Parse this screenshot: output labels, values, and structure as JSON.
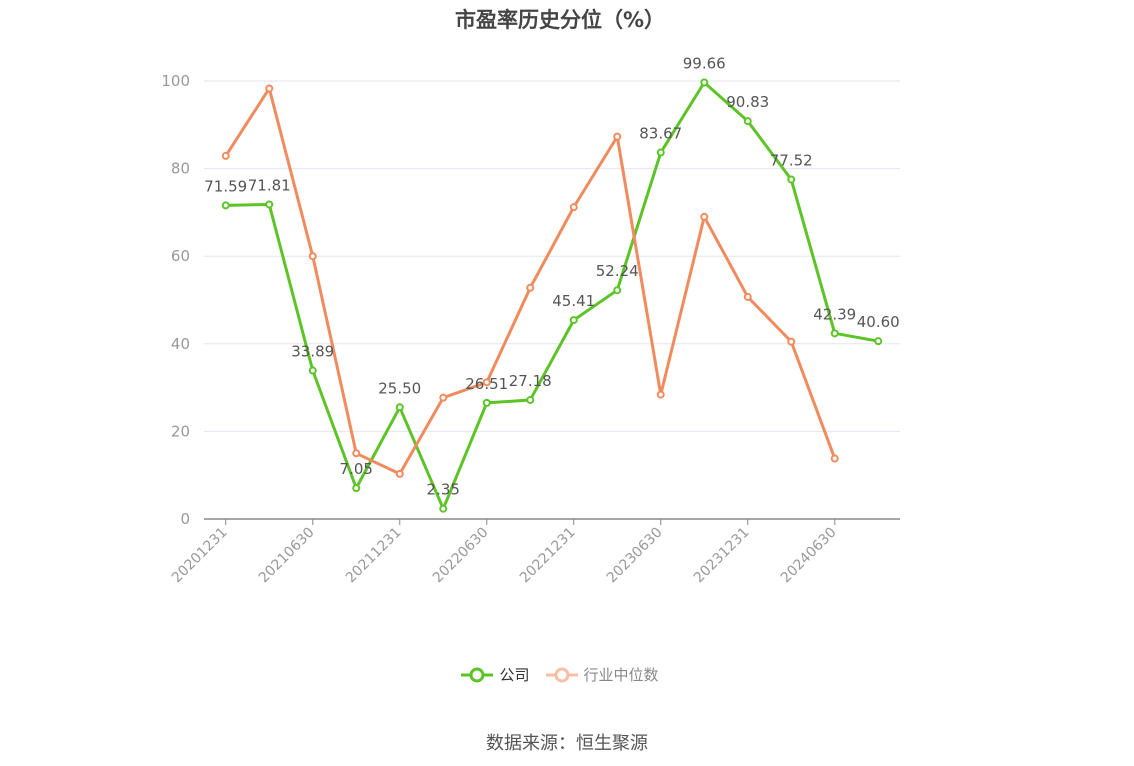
{
  "chart_data": {
    "type": "line",
    "title": "市盈率历史分位（%）",
    "categories": [
      "20201231",
      "20210331",
      "20210630",
      "20210930",
      "20211231",
      "20220331",
      "20220630",
      "20220930",
      "20221231",
      "20230331",
      "20230630",
      "20230930",
      "20231231",
      "20240331",
      "20240630",
      "20240930"
    ],
    "x_tick_labels": [
      "20201231",
      "20210630",
      "20211231",
      "20220630",
      "20221231",
      "20230630",
      "20231231",
      "20240630"
    ],
    "y_ticks": [
      "0",
      "20",
      "40",
      "60",
      "80",
      "100"
    ],
    "ylim": [
      0,
      100
    ],
    "grid": true,
    "legend_position": "bottom",
    "series": [
      {
        "name": "公司",
        "color": "#5cc427",
        "values": [
          71.59,
          71.81,
          33.89,
          7.05,
          25.5,
          2.35,
          26.51,
          27.18,
          45.41,
          52.24,
          83.67,
          99.66,
          90.83,
          77.52,
          42.39,
          40.6
        ],
        "labels": [
          "71.59",
          "71.81",
          "33.89",
          "7.05",
          "25.50",
          "2.35",
          "26.51",
          "27.18",
          "45.41",
          "52.24",
          "83.67",
          "99.66",
          "90.83",
          "77.52",
          "42.39",
          "40.60"
        ]
      },
      {
        "name": "行业中位数",
        "color": "#f18b5d",
        "values": [
          82.9,
          98.3,
          60.0,
          15.0,
          10.3,
          27.7,
          31.2,
          52.8,
          71.2,
          87.3,
          28.4,
          69.0,
          50.7,
          40.5,
          13.8,
          null
        ]
      }
    ]
  },
  "legend": {
    "company": "公司",
    "industry": "行业中位数"
  },
  "source": "数据来源：恒生聚源"
}
